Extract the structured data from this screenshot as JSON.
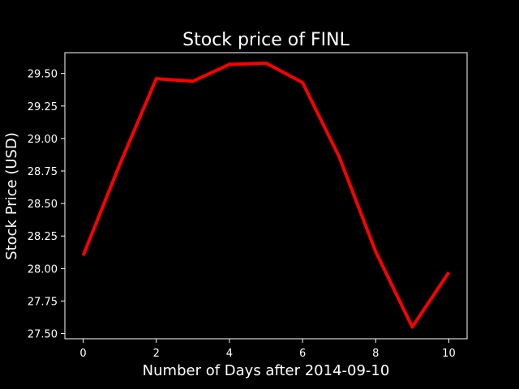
{
  "chart_data": {
    "type": "line",
    "title": "Stock price of FINL",
    "xlabel": "Number of Days after 2014-09-10",
    "ylabel": "Stock Price (USD)",
    "xlim": [
      -0.5,
      10.5
    ],
    "ylim": [
      27.46,
      29.66
    ],
    "x_ticks": [
      0,
      2,
      4,
      6,
      8,
      10
    ],
    "x_tick_labels": [
      "0",
      "2",
      "4",
      "6",
      "8",
      "10"
    ],
    "y_ticks": [
      27.5,
      27.75,
      28.0,
      28.25,
      28.5,
      28.75,
      29.0,
      29.25,
      29.5
    ],
    "y_tick_labels": [
      "27.50",
      "27.75",
      "28.00",
      "28.25",
      "28.50",
      "28.75",
      "29.00",
      "29.25",
      "29.50"
    ],
    "grid": false,
    "legend": "none",
    "series": [
      {
        "color": "#ff0000",
        "x": [
          0,
          1,
          2,
          3,
          4,
          5,
          6,
          7,
          8,
          9,
          10
        ],
        "y": [
          28.1,
          28.8,
          29.46,
          29.44,
          29.57,
          29.58,
          29.43,
          28.86,
          28.13,
          27.55,
          27.97
        ]
      }
    ]
  }
}
